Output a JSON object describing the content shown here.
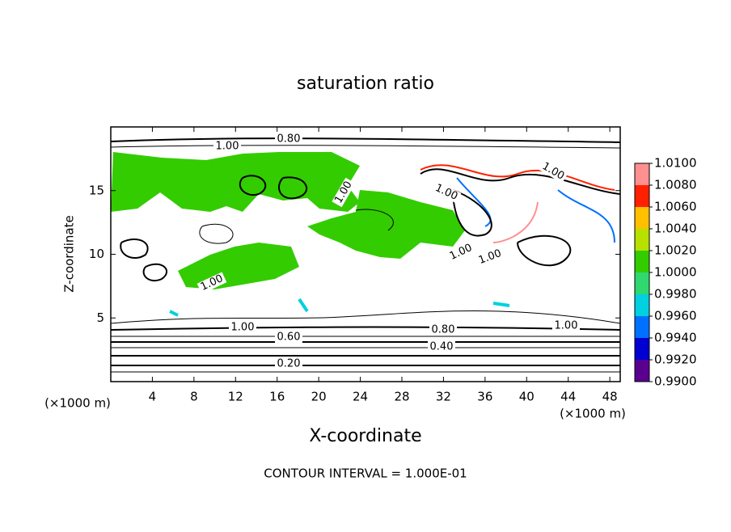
{
  "chart_data": {
    "type": "contour",
    "title": "saturation ratio",
    "x_label": "X-coordinate",
    "y_label": "Z-coordinate",
    "unit_label": "(×1000 m)",
    "xlim": [
      0,
      49
    ],
    "xticks": [
      4,
      8,
      12,
      16,
      20,
      24,
      28,
      32,
      36,
      40,
      44,
      48
    ],
    "ylim": [
      0,
      20
    ],
    "yticks": [
      5,
      10,
      15
    ],
    "contour_labels": [
      "1.00",
      "0.80",
      "1.00",
      "1.00",
      "1.00",
      "1.00",
      "1.00",
      "1.00",
      "1.00",
      "1.00",
      "0.60",
      "0.80",
      "0.40",
      "0.20"
    ],
    "footer": "CONTOUR INTERVAL = 1.000E-01",
    "colorbar": {
      "lim": [
        0.99,
        1.01
      ],
      "ticks": [
        {
          "value": 0.99,
          "label": "0.9900"
        },
        {
          "value": 0.992,
          "label": "0.9920"
        },
        {
          "value": 0.994,
          "label": "0.9940"
        },
        {
          "value": 0.996,
          "label": "0.9960"
        },
        {
          "value": 0.998,
          "label": "0.9980"
        },
        {
          "value": 1.0,
          "label": "1.0000"
        },
        {
          "value": 1.002,
          "label": "1.0020"
        },
        {
          "value": 1.004,
          "label": "1.0040"
        },
        {
          "value": 1.006,
          "label": "1.0060"
        },
        {
          "value": 1.008,
          "label": "1.0080"
        },
        {
          "value": 1.01,
          "label": "1.0100"
        }
      ],
      "colors": [
        "#5a0090",
        "#0000d0",
        "#0070ff",
        "#00d0e0",
        "#30d870",
        "#33cc00",
        "#b8e000",
        "#ffc000",
        "#ff2000",
        "#ff9090"
      ]
    }
  }
}
